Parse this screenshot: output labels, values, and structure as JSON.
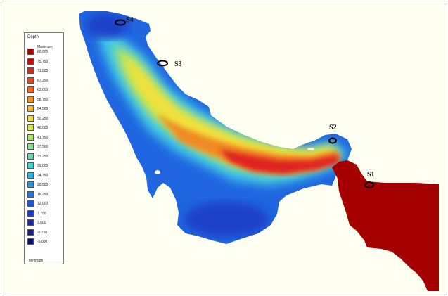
{
  "legend": {
    "title": "Depth",
    "max_label": "Maximum",
    "min_label": "Minimum",
    "items": [
      {
        "value": "80.000",
        "color": "#a50000"
      },
      {
        "value": "75.750",
        "color": "#c80c0c"
      },
      {
        "value": "71.500",
        "color": "#e02222"
      },
      {
        "value": "67.250",
        "color": "#ee4422"
      },
      {
        "value": "63.000",
        "color": "#f06a22"
      },
      {
        "value": "58.750",
        "color": "#f39228"
      },
      {
        "value": "54.500",
        "color": "#f7b82c"
      },
      {
        "value": "50.250",
        "color": "#f7dc33"
      },
      {
        "value": "46.000",
        "color": "#d9ec4a"
      },
      {
        "value": "41.750",
        "color": "#aee86a"
      },
      {
        "value": "37.500",
        "color": "#88e28e"
      },
      {
        "value": "33.250",
        "color": "#66dbb2"
      },
      {
        "value": "29.000",
        "color": "#45d3d3"
      },
      {
        "value": "24.750",
        "color": "#2fb9ea"
      },
      {
        "value": "20.500",
        "color": "#2a97ea"
      },
      {
        "value": "16.250",
        "color": "#2376e6"
      },
      {
        "value": "12.000",
        "color": "#1c58dc"
      },
      {
        "value": "7.750",
        "color": "#1a3ccc"
      },
      {
        "value": "3.500",
        "color": "#1626b2"
      },
      {
        "value": "-0.750",
        "color": "#121a93"
      },
      {
        "value": "-5.000",
        "color": "#0c0f6e"
      }
    ]
  },
  "stations": [
    {
      "label": "S4"
    },
    {
      "label": "S3"
    },
    {
      "label": "S2"
    },
    {
      "label": "S1"
    }
  ]
}
